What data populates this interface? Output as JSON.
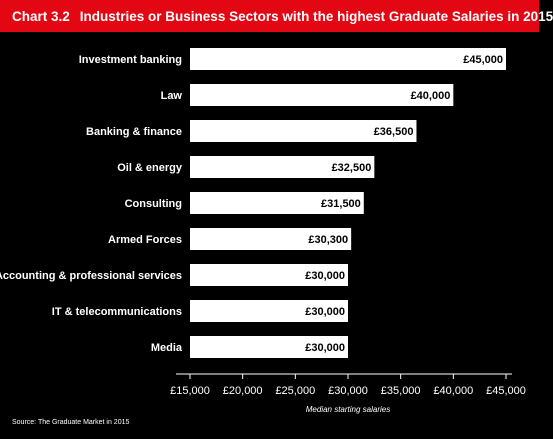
{
  "header": {
    "chart_number": "Chart 3.2",
    "title": "Industries or Business Sectors with the highest Graduate Salaries in 2015"
  },
  "source": "Source: The Graduate Market in 2015",
  "colors": {
    "title_bar": "#e30613",
    "background": "#000000",
    "bar": "#ffffff",
    "value_text": "#000000"
  },
  "chart_data": {
    "type": "bar",
    "orientation": "horizontal",
    "title": "Industries or Business Sectors with the highest Graduate Salaries in 2015",
    "xlabel": "Median starting salaries",
    "ylabel": "",
    "xlim": [
      15000,
      45000
    ],
    "xticks": [
      15000,
      20000,
      25000,
      30000,
      35000,
      40000,
      45000
    ],
    "xtick_labels": [
      "£15,000",
      "£20,000",
      "£25,000",
      "£30,000",
      "£35,000",
      "£40,000",
      "£45,000"
    ],
    "categories": [
      "Investment banking",
      "Law",
      "Banking & finance",
      "Oil & energy",
      "Consulting",
      "Armed Forces",
      "Accounting & professional services",
      "IT & telecommunications",
      "Media"
    ],
    "values": [
      45000,
      40000,
      36500,
      32500,
      31500,
      30300,
      30000,
      30000,
      30000
    ],
    "value_labels": [
      "£45,000",
      "£40,000",
      "£36,500",
      "£32,500",
      "£31,500",
      "£30,300",
      "£30,000",
      "£30,000",
      "£30,000"
    ],
    "grid": false,
    "legend": false
  }
}
